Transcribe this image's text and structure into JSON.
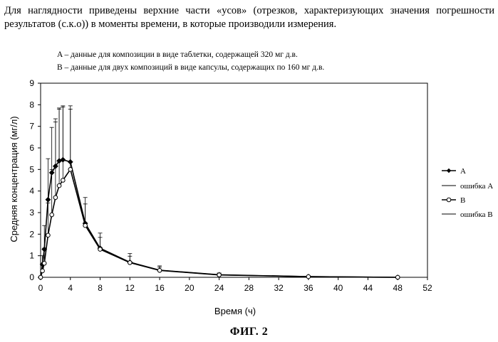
{
  "intro_text": "Для наглядности приведены верхние части «усов» (отрезков, характеризующих значения погрешности результатов (с.к.о)) в моменты времени, в которые производили измерения.",
  "note_a": "A – данные для композиции в виде таблетки, содержащей 320 мг д.в.",
  "note_b": "B – данные для двух композиций в виде капсулы, содержащих по 160 мг д.в.",
  "figure_caption": "ФИГ. 2",
  "chart_data": {
    "type": "line",
    "xlabel": "Время (ч)",
    "ylabel": "Средняя концентрация (мг/л)",
    "xlim": [
      0,
      52
    ],
    "ylim": [
      0,
      9
    ],
    "xticks": [
      0,
      4,
      8,
      12,
      16,
      20,
      24,
      28,
      32,
      36,
      40,
      44,
      48,
      52
    ],
    "yticks": [
      0,
      1,
      2,
      3,
      4,
      5,
      6,
      7,
      8,
      9
    ],
    "grid": false,
    "legend_position": "right",
    "legend": [
      "A",
      "ошибка A",
      "B",
      "ошибка B"
    ],
    "series": [
      {
        "name": "A",
        "marker": "filled-diamond",
        "color": "#000000",
        "x": [
          0,
          0.25,
          0.5,
          1,
          1.5,
          2,
          2.5,
          3,
          4,
          6,
          8,
          12,
          16,
          24,
          36,
          48
        ],
        "y": [
          0,
          0.6,
          1.3,
          3.6,
          4.85,
          5.15,
          5.4,
          5.45,
          5.35,
          2.5,
          1.35,
          0.7,
          0.33,
          0.12,
          0.03,
          0
        ],
        "error": [
          0,
          0.4,
          1.1,
          1.9,
          2.1,
          2.2,
          2.4,
          2.5,
          2.6,
          1.2,
          0.7,
          0.4,
          0.2,
          0.08,
          0.03,
          0
        ]
      },
      {
        "name": "B",
        "marker": "open-circle",
        "color": "#000000",
        "x": [
          0,
          0.25,
          0.5,
          1,
          1.5,
          2,
          2.5,
          3,
          4,
          6,
          8,
          12,
          16,
          24,
          36,
          48
        ],
        "y": [
          0,
          0.3,
          0.65,
          1.95,
          2.9,
          3.7,
          4.25,
          4.5,
          5.0,
          2.4,
          1.3,
          0.68,
          0.32,
          0.11,
          0.03,
          0
        ],
        "error": [
          0,
          0.3,
          0.7,
          1.5,
          2.1,
          3.5,
          3.6,
          3.4,
          2.8,
          1.0,
          0.55,
          0.3,
          0.15,
          0.06,
          0.02,
          0
        ]
      }
    ]
  }
}
